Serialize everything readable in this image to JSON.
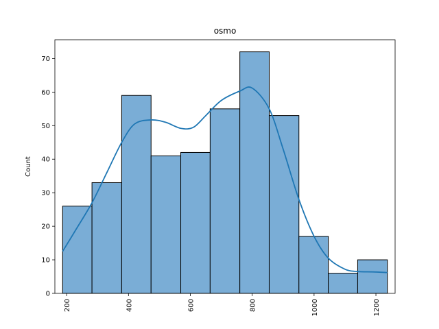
{
  "chart_data": {
    "type": "bar",
    "title": "osmo",
    "xlabel": "",
    "ylabel": "Count",
    "bin_edges": [
      187,
      282,
      378,
      473,
      569,
      664,
      760,
      855,
      951,
      1046,
      1141,
      1237
    ],
    "values": [
      26,
      33,
      59,
      41,
      42,
      55,
      72,
      53,
      17,
      6,
      10
    ],
    "kde": {
      "x": [
        187,
        230,
        282,
        330,
        378,
        420,
        473,
        520,
        569,
        610,
        650,
        700,
        760,
        800,
        855,
        900,
        951,
        1000,
        1046,
        1100,
        1141,
        1190,
        1237
      ],
      "y": [
        12.5,
        19,
        27,
        36,
        45,
        50.5,
        51.7,
        51,
        49.2,
        49.5,
        53,
        57.5,
        60.3,
        61.2,
        55,
        43,
        28,
        17,
        10.5,
        7.2,
        6.5,
        6.4,
        6.2
      ]
    },
    "xlim": [
      162,
      1262
    ],
    "ylim": [
      0,
      75.6
    ],
    "xticks": [
      200,
      400,
      600,
      800,
      1000,
      1200
    ],
    "yticks": [
      0,
      10,
      20,
      30,
      40,
      50,
      60,
      70
    ],
    "colors": {
      "bar_fill": "#7aadd6",
      "bar_edge": "#000000",
      "kde_line": "#1f77b4"
    },
    "grid": false,
    "legend": "none"
  }
}
